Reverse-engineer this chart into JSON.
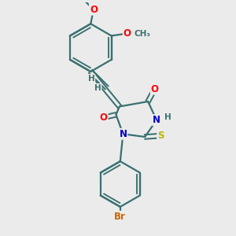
{
  "bg_color": "#ebebeb",
  "bond_color": "#3a7070",
  "bond_width": 1.6,
  "atom_colors": {
    "O": "#ff0000",
    "N": "#0000cc",
    "S": "#b8b800",
    "Br": "#cc6600",
    "H": "#3a7070",
    "C": "#3a7070"
  },
  "font_size": 8.5,
  "fig_size": [
    3.0,
    3.0
  ],
  "dpi": 100
}
